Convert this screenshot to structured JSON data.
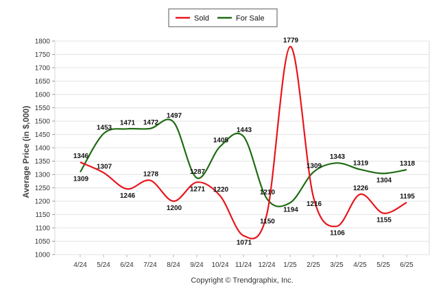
{
  "copyright": "Copyright © Trendgraphix, Inc.",
  "chart_data": {
    "type": "line",
    "title": "",
    "xlabel": "",
    "ylabel": "Average Price (in $,000)",
    "ylim": [
      1000,
      1800
    ],
    "yticks": [
      1000,
      1050,
      1100,
      1150,
      1200,
      1250,
      1300,
      1350,
      1400,
      1450,
      1500,
      1550,
      1600,
      1650,
      1700,
      1750,
      1800
    ],
    "grid": true,
    "legend_position": "top-center",
    "categories": [
      "4/24",
      "5/24",
      "6/24",
      "7/24",
      "8/24",
      "9/24",
      "10/24",
      "11/24",
      "12/24",
      "1/25",
      "2/25",
      "3/25",
      "4/25",
      "5/25",
      "6/25"
    ],
    "series": [
      {
        "name": "Sold",
        "color": "#e8141b",
        "values": [
          1346,
          1307,
          1246,
          1278,
          1200,
          1271,
          1220,
          1071,
          1150,
          1779,
          1216,
          1106,
          1226,
          1155,
          1195
        ]
      },
      {
        "name": "For Sale",
        "color": "#1e6b12",
        "values": [
          1309,
          1453,
          1471,
          1472,
          1497,
          1287,
          1405,
          1443,
          1210,
          1194,
          1309,
          1343,
          1319,
          1304,
          1318
        ]
      }
    ]
  }
}
